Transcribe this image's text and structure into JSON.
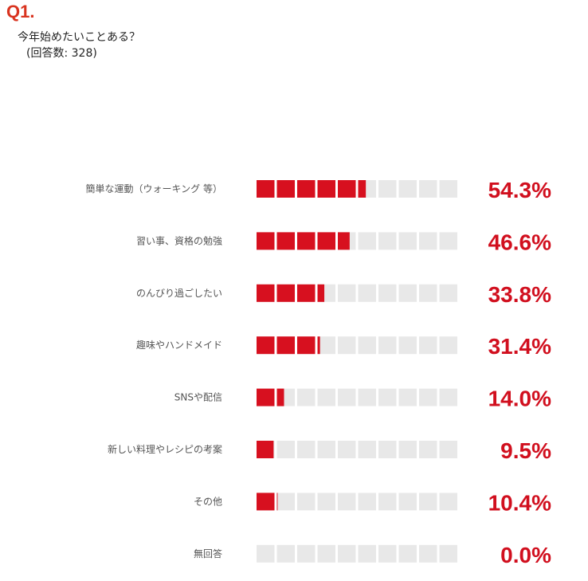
{
  "header": {
    "qnum": "Q1.",
    "question": "今年始めたいことある？",
    "count": "(回答数: 328)"
  },
  "colors": {
    "accent": "#d9331f",
    "bar_fill": "#d7101f",
    "bar_empty": "#e8e8e8",
    "value_text": "#d10f1e"
  },
  "chart_data": {
    "type": "bar",
    "orientation": "horizontal",
    "categories": [
      "簡単な運動（ウォーキング 等）",
      "習い事、資格の勉強",
      "のんびり過ごしたい",
      "趣味やハンドメイド",
      "SNSや配信",
      "新しい料理やレシピの考案",
      "その他",
      "無回答"
    ],
    "values": [
      54.3,
      46.6,
      33.8,
      31.4,
      14.0,
      9.5,
      10.4,
      0.0
    ],
    "value_labels": [
      "54.3%",
      "46.6%",
      "33.8%",
      "31.4%",
      "14.0%",
      "9.5%",
      "10.4%",
      "0.0%"
    ],
    "xlim": [
      0,
      100
    ],
    "segments": 10,
    "grid": false,
    "legend": "none"
  }
}
